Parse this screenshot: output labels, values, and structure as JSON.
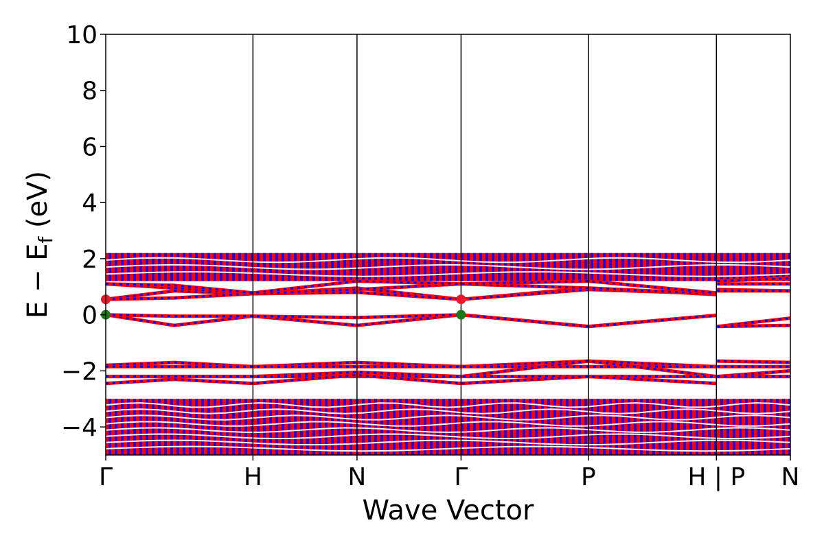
{
  "chart_data": {
    "type": "line",
    "title": "",
    "xlabel": "Wave Vector",
    "ylabel": "E − E_f (eV)",
    "ylabel_main": "E − E",
    "ylabel_sub": "f",
    "ylabel_tail": " (eV)",
    "ylim": [
      -5,
      10
    ],
    "yticks": [
      -4,
      -2,
      0,
      2,
      4,
      6,
      8,
      10
    ],
    "ytick_labels": [
      "−4",
      "−2",
      "0",
      "2",
      "4",
      "6",
      "8",
      "10"
    ],
    "xlim": [
      0,
      1
    ],
    "kpoints": [
      {
        "label": "Γ",
        "x": 0.0
      },
      {
        "label": "H",
        "x": 0.215
      },
      {
        "label": "N",
        "x": 0.367
      },
      {
        "label": "Γ",
        "x": 0.519
      },
      {
        "label": "P",
        "x": 0.705
      },
      {
        "label": "H | P",
        "x": 0.892
      },
      {
        "label": "N",
        "x": 1.0
      }
    ],
    "path_break_x": 0.892,
    "grid": false,
    "legend": "none",
    "colors": {
      "band_primary": "#ff0000",
      "band_secondary": "#0000ff",
      "marker_vbm": "#1a7a1a",
      "marker_cbm": "#e8192c"
    },
    "band_groups": [
      {
        "name": "upper-valence-block",
        "y_range": [
          -5.0,
          -3.0
        ]
      },
      {
        "name": "conduction-block",
        "y_range": [
          1.2,
          2.2
        ]
      }
    ],
    "series": [
      {
        "x": [
          0,
          0.1,
          0.215,
          0.367,
          0.519,
          0.705,
          0.892,
          0.893,
          1.0
        ],
        "values": [
          0.0,
          -0.38,
          -0.05,
          -0.38,
          0.0,
          -0.42,
          -0.02,
          -0.42,
          -0.12
        ]
      },
      {
        "x": [
          0,
          0.1,
          0.215,
          0.367,
          0.519,
          0.705,
          0.892,
          0.893,
          1.0
        ],
        "values": [
          0.0,
          -0.05,
          -0.05,
          -0.1,
          0.0,
          -0.42,
          -0.02,
          -0.42,
          -0.38
        ]
      },
      {
        "x": [
          0,
          0.1,
          0.215,
          0.367,
          0.519,
          0.705,
          0.892,
          0.893,
          1.0
        ],
        "values": [
          0.55,
          0.85,
          0.75,
          0.95,
          0.55,
          0.95,
          0.72,
          0.9,
          0.85
        ]
      },
      {
        "x": [
          0,
          0.1,
          0.215,
          0.367,
          0.519,
          0.705,
          0.892,
          0.893,
          1.0
        ],
        "values": [
          0.55,
          0.6,
          0.75,
          0.8,
          0.55,
          0.9,
          0.75,
          0.85,
          0.85
        ]
      },
      {
        "x": [
          0,
          0.1,
          0.215,
          0.367,
          0.519,
          0.705,
          0.892,
          0.893,
          1.0
        ],
        "values": [
          1.1,
          0.95,
          0.75,
          0.9,
          1.1,
          0.95,
          0.75,
          1.1,
          1.1
        ]
      },
      {
        "x": [
          0,
          0.1,
          0.215,
          0.367,
          0.519,
          0.705,
          0.892,
          0.893,
          1.0
        ],
        "values": [
          1.1,
          1.05,
          0.78,
          1.2,
          1.1,
          1.2,
          0.78,
          1.2,
          1.3
        ]
      },
      {
        "x": [
          0,
          0.1,
          0.215,
          0.367,
          0.519,
          0.705,
          0.892,
          0.893,
          1.0
        ],
        "values": [
          -1.8,
          -1.7,
          -1.85,
          -1.7,
          -1.85,
          -1.65,
          -1.85,
          -1.65,
          -1.7
        ]
      },
      {
        "x": [
          0,
          0.1,
          0.215,
          0.367,
          0.519,
          0.705,
          0.892,
          0.893,
          1.0
        ],
        "values": [
          -1.85,
          -1.85,
          -1.85,
          -1.85,
          -1.85,
          -1.85,
          -1.85,
          -1.85,
          -1.85
        ]
      },
      {
        "x": [
          0,
          0.1,
          0.215,
          0.367,
          0.519,
          0.705,
          0.892,
          0.893,
          1.0
        ],
        "values": [
          -2.2,
          -2.2,
          -2.2,
          -2.05,
          -2.2,
          -1.65,
          -2.2,
          -2.2,
          -2.0
        ]
      },
      {
        "x": [
          0,
          0.1,
          0.215,
          0.367,
          0.519,
          0.705,
          0.892,
          0.893,
          1.0
        ],
        "values": [
          -2.2,
          -2.2,
          -2.2,
          -2.2,
          -2.2,
          -2.2,
          -2.2,
          -2.2,
          -2.2
        ]
      },
      {
        "x": [
          0,
          0.1,
          0.215,
          0.367,
          0.519,
          0.705,
          0.892,
          0.893,
          1.0
        ],
        "values": [
          -2.45,
          -2.3,
          -2.45,
          -2.15,
          -2.45,
          -2.2,
          -2.45,
          -2.2,
          -2.2
        ]
      }
    ],
    "markers": [
      {
        "x": 0.0,
        "y": 0.0,
        "kind": "vbm"
      },
      {
        "x": 0.519,
        "y": 0.0,
        "kind": "vbm"
      },
      {
        "x": 0.0,
        "y": 0.55,
        "kind": "cbm"
      },
      {
        "x": 0.519,
        "y": 0.55,
        "kind": "cbm"
      }
    ]
  }
}
